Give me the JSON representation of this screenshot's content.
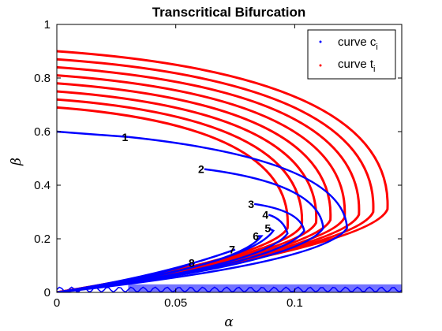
{
  "chart_data": {
    "type": "line",
    "title": "Transcritical Bifurcation",
    "xlabel": "α",
    "ylabel": "β",
    "xlim": [
      0,
      0.145
    ],
    "ylim": [
      0,
      1
    ],
    "xticks": [
      "0",
      "0.05",
      "0.1"
    ],
    "xtick_values": [
      0,
      0.05,
      0.1
    ],
    "yticks": [
      "0",
      "0.2",
      "0.4",
      "0.6",
      "0.8",
      "1"
    ],
    "ytick_values": [
      0,
      0.2,
      0.4,
      0.6,
      0.8,
      1
    ],
    "grid": false,
    "legend": {
      "placement": "top-right",
      "entries": [
        {
          "label": "curve c",
          "subscript": "i",
          "color": "#0000ff"
        },
        {
          "label": "curve t",
          "subscript": "i",
          "color": "#ff0000"
        }
      ]
    },
    "colors": {
      "c_curves": "#0000ff",
      "t_curves": "#ff0000"
    },
    "c_curves": [
      {
        "label": "1",
        "tip": [
          0.122,
          0.24
        ],
        "top": [
          0.03,
          0.58
        ]
      },
      {
        "label": "2",
        "tip": [
          0.112,
          0.24
        ],
        "top": [
          0.062,
          0.46
        ]
      },
      {
        "label": "3",
        "tip": [
          0.104,
          0.23
        ],
        "top": [
          0.083,
          0.33
        ]
      },
      {
        "label": "4",
        "tip": [
          0.097,
          0.22
        ],
        "top": [
          0.089,
          0.29
        ]
      },
      {
        "label": "5",
        "tip": [
          0.091,
          0.23
        ],
        "top": [
          0.09,
          0.24
        ]
      },
      {
        "label": "6",
        "tip": [
          0.086,
          0.21
        ],
        "top": [
          0.085,
          0.21
        ]
      },
      {
        "label": "7",
        "tip": [
          0.075,
          0.16
        ],
        "top": [
          0.075,
          0.16
        ]
      },
      {
        "label": "8",
        "tip": [
          0.058,
          0.11
        ],
        "top": [
          0.058,
          0.11
        ]
      }
    ],
    "t_curves": [
      {
        "top": [
          0,
          0.9
        ],
        "tip": [
          0.139,
          0.31
        ]
      },
      {
        "top": [
          0,
          0.87
        ],
        "tip": [
          0.133,
          0.3
        ]
      },
      {
        "top": [
          0,
          0.84
        ],
        "tip": [
          0.127,
          0.29
        ]
      },
      {
        "top": [
          0,
          0.81
        ],
        "tip": [
          0.121,
          0.28
        ]
      },
      {
        "top": [
          0,
          0.78
        ],
        "tip": [
          0.115,
          0.27
        ]
      },
      {
        "top": [
          0,
          0.75
        ],
        "tip": [
          0.109,
          0.26
        ]
      },
      {
        "top": [
          0,
          0.72
        ],
        "tip": [
          0.103,
          0.25
        ]
      },
      {
        "top": [
          0,
          0.69
        ],
        "tip": [
          0.097,
          0.24
        ]
      }
    ],
    "bottom_band": {
      "x_range": [
        0,
        0.145
      ],
      "y_range": [
        0,
        0.03
      ],
      "color": "#0000ff"
    }
  }
}
